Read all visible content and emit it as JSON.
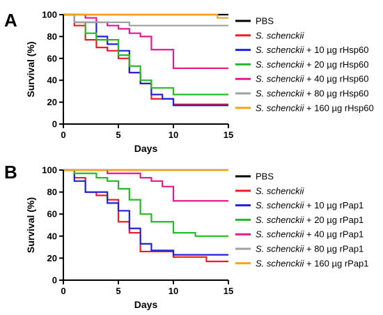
{
  "chart_data": [
    {
      "type": "line",
      "panel_label": "A",
      "xlabel": "Days",
      "ylabel": "Survival (%)",
      "xlim": [
        0,
        15
      ],
      "ylim": [
        0,
        100
      ],
      "xticks": [
        0,
        5,
        10,
        15
      ],
      "yticks": [
        0,
        20,
        40,
        60,
        80,
        100
      ],
      "legend_position": "right",
      "series": [
        {
          "name_italic": "PBS",
          "name_rest": "",
          "color": "#000000",
          "x": [
            0,
            12,
            15
          ],
          "y": [
            100,
            100,
            100
          ]
        },
        {
          "name_italic": "S. schenckii",
          "name_rest": "",
          "color": "#ee1c25",
          "x": [
            0,
            1,
            2,
            3,
            4,
            5,
            6,
            7,
            8,
            9,
            10,
            15
          ],
          "y": [
            100,
            90,
            77,
            70,
            67,
            60,
            47,
            37,
            23,
            23,
            18,
            18
          ]
        },
        {
          "name_italic": "S. schenckii",
          "name_rest": " + 10 µg rHsp60",
          "color": "#1f23d6",
          "x": [
            0,
            1,
            3,
            4,
            5,
            6,
            7,
            8,
            9,
            10,
            15
          ],
          "y": [
            100,
            93,
            80,
            73,
            67,
            47,
            37,
            27,
            23,
            17,
            17
          ]
        },
        {
          "name_italic": "S. schenckii",
          "name_rest": " + 20 µg rHsp60",
          "color": "#22bb22",
          "x": [
            0,
            1,
            2,
            3,
            5,
            6,
            7,
            8,
            10,
            15
          ],
          "y": [
            100,
            93,
            83,
            77,
            63,
            53,
            40,
            33,
            27,
            27
          ]
        },
        {
          "name_italic": "S. schenckii",
          "name_rest": " + 40 µg rHsp60",
          "color": "#e6198c",
          "x": [
            0,
            2,
            3,
            4,
            5,
            6,
            7,
            8,
            10,
            15
          ],
          "y": [
            100,
            97,
            93,
            90,
            87,
            83,
            80,
            68,
            51,
            51
          ]
        },
        {
          "name_italic": "S. schenckii",
          "name_rest": " + 80 µg rHsp60",
          "color": "#a0a0a0",
          "x": [
            0,
            1,
            4,
            6,
            15
          ],
          "y": [
            100,
            93,
            93,
            90,
            90
          ]
        },
        {
          "name_italic": "S. schenckii",
          "name_rest": " + 160 µg rHsp60",
          "color": "#f7a21b",
          "x": [
            0,
            14,
            15
          ],
          "y": [
            100,
            97,
            97
          ]
        }
      ]
    },
    {
      "type": "line",
      "panel_label": "B",
      "xlabel": "Days",
      "ylabel": "Survival (%)",
      "xlim": [
        0,
        15
      ],
      "ylim": [
        0,
        100
      ],
      "xticks": [
        0,
        5,
        10,
        15
      ],
      "yticks": [
        0,
        20,
        40,
        60,
        80,
        100
      ],
      "legend_position": "right",
      "series": [
        {
          "name_italic": "PBS",
          "name_rest": "",
          "color": "#000000",
          "x": [
            0,
            15
          ],
          "y": [
            100,
            100
          ]
        },
        {
          "name_italic": "S. schenckii",
          "name_rest": "",
          "color": "#ee1c25",
          "x": [
            0,
            1,
            2,
            3,
            4,
            5,
            6,
            7,
            9,
            10,
            13,
            15
          ],
          "y": [
            100,
            93,
            80,
            77,
            73,
            53,
            43,
            26,
            26,
            21,
            17,
            17
          ]
        },
        {
          "name_italic": "S. schenckii",
          "name_rest": " + 10 µg rPap1",
          "color": "#1f23d6",
          "x": [
            0,
            1,
            2,
            4,
            5,
            6,
            7,
            8,
            10,
            15
          ],
          "y": [
            100,
            90,
            80,
            70,
            63,
            47,
            33,
            27,
            23,
            23
          ]
        },
        {
          "name_italic": "S. schenckii",
          "name_rest": " + 20 µg rPap1",
          "color": "#22bb22",
          "x": [
            0,
            1,
            3,
            4,
            5,
            6,
            7,
            8,
            10,
            12,
            15
          ],
          "y": [
            100,
            97,
            93,
            90,
            83,
            73,
            60,
            53,
            43,
            40,
            40
          ]
        },
        {
          "name_italic": "S. schenckii",
          "name_rest": " + 40 µg rPap1",
          "color": "#e6198c",
          "x": [
            0,
            4,
            7,
            8,
            9,
            10,
            15
          ],
          "y": [
            100,
            97,
            93,
            90,
            85,
            72,
            72
          ]
        },
        {
          "name_italic": "S. schenckii",
          "name_rest": " + 80 µg rPap1",
          "color": "#a0a0a0",
          "x": [
            0,
            15
          ],
          "y": [
            100,
            100
          ]
        },
        {
          "name_italic": "S. schenckii",
          "name_rest": " + 160 µg rPap1",
          "color": "#f7a21b",
          "x": [
            0,
            15
          ],
          "y": [
            100,
            100
          ]
        }
      ]
    }
  ]
}
